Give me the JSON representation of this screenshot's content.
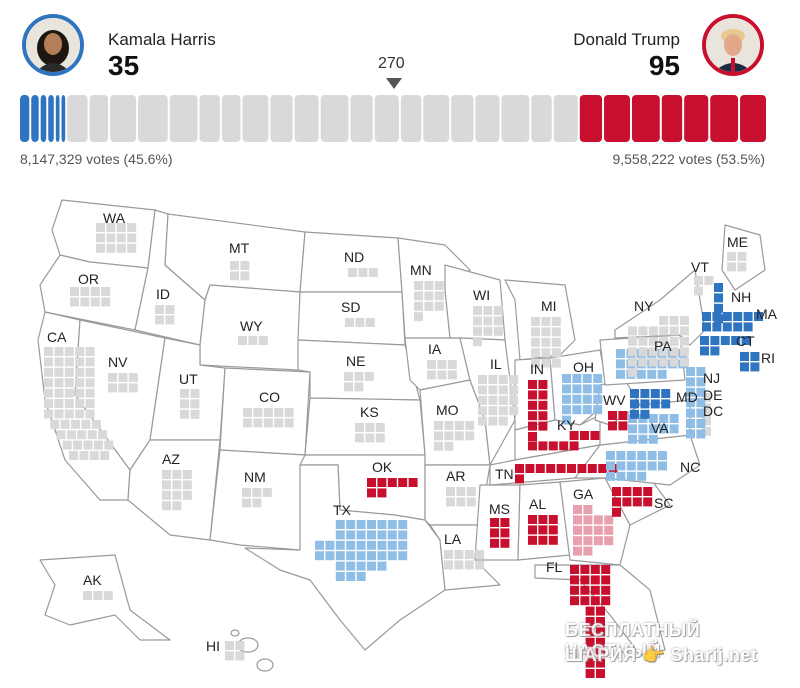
{
  "candidates": {
    "harris": {
      "name": "Kamala Harris",
      "electoral_votes": "35",
      "votes_text": "8,147,329 votes (45.6%)",
      "color": "#2f74c0"
    },
    "trump": {
      "name": "Donald Trump",
      "electoral_votes": "95",
      "votes_text": "9,558,222 votes (53.5%)",
      "color": "#c8102e"
    }
  },
  "threshold": {
    "label": "270"
  },
  "colors": {
    "uncalled": "#d9d9d9",
    "lean_dem": "#8fbde6",
    "lean_rep": "#e8a0ae",
    "dem": "#2f74c0",
    "rep": "#c8102e"
  },
  "states": [
    {
      "abbr": "WA"
    },
    {
      "abbr": "OR"
    },
    {
      "abbr": "CA"
    },
    {
      "abbr": "NV"
    },
    {
      "abbr": "ID"
    },
    {
      "abbr": "MT"
    },
    {
      "abbr": "WY"
    },
    {
      "abbr": "UT"
    },
    {
      "abbr": "AZ"
    },
    {
      "abbr": "CO"
    },
    {
      "abbr": "NM"
    },
    {
      "abbr": "ND"
    },
    {
      "abbr": "SD"
    },
    {
      "abbr": "NE"
    },
    {
      "abbr": "KS"
    },
    {
      "abbr": "OK"
    },
    {
      "abbr": "TX"
    },
    {
      "abbr": "MN"
    },
    {
      "abbr": "IA"
    },
    {
      "abbr": "MO"
    },
    {
      "abbr": "AR"
    },
    {
      "abbr": "LA"
    },
    {
      "abbr": "WI"
    },
    {
      "abbr": "IL"
    },
    {
      "abbr": "MI"
    },
    {
      "abbr": "IN"
    },
    {
      "abbr": "OH"
    },
    {
      "abbr": "KY"
    },
    {
      "abbr": "TN"
    },
    {
      "abbr": "MS"
    },
    {
      "abbr": "AL"
    },
    {
      "abbr": "GA"
    },
    {
      "abbr": "FL"
    },
    {
      "abbr": "SC"
    },
    {
      "abbr": "NC"
    },
    {
      "abbr": "VA"
    },
    {
      "abbr": "WV"
    },
    {
      "abbr": "MD"
    },
    {
      "abbr": "DE"
    },
    {
      "abbr": "DC"
    },
    {
      "abbr": "PA"
    },
    {
      "abbr": "NJ"
    },
    {
      "abbr": "NY"
    },
    {
      "abbr": "CT"
    },
    {
      "abbr": "RI"
    },
    {
      "abbr": "MA"
    },
    {
      "abbr": "VT"
    },
    {
      "abbr": "NH"
    },
    {
      "abbr": "ME"
    },
    {
      "abbr": "AK"
    },
    {
      "abbr": "HI"
    }
  ],
  "watermark": {
    "line1": "БЕСПЛАТНЫЙ ЧАСТНЫЙ",
    "line2": "ШАРИЯ 👉 Sharij.net"
  }
}
